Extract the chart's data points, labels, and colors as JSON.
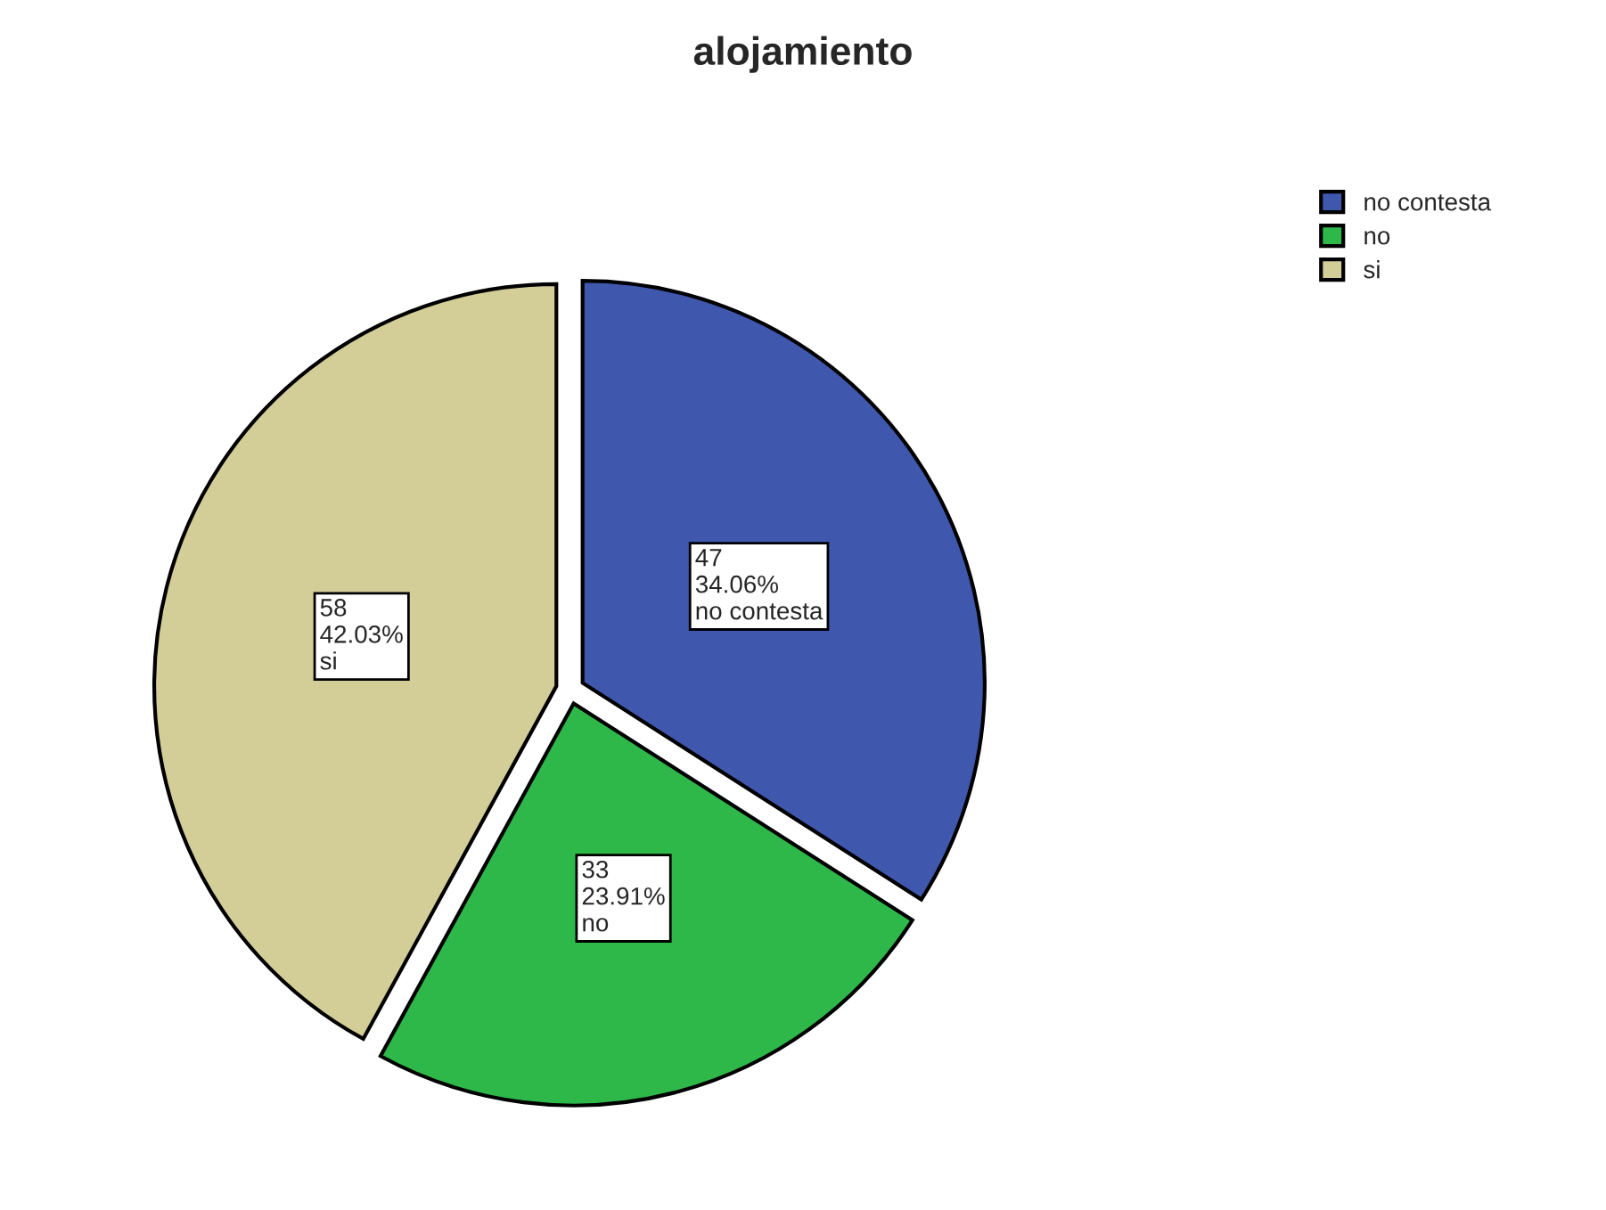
{
  "chart_data": {
    "type": "pie",
    "title": "alojamiento",
    "categories": [
      "no contesta",
      "no",
      "si"
    ],
    "values": [
      47,
      33,
      58
    ],
    "colors": [
      "#3f57ad",
      "#2fb84a",
      "#d3ce98"
    ],
    "value_labels": [
      "47\n34.06%\nno contesta",
      "33\n23.91%\nno",
      "58\n42.03%\nsi"
    ],
    "legend": "top right"
  }
}
